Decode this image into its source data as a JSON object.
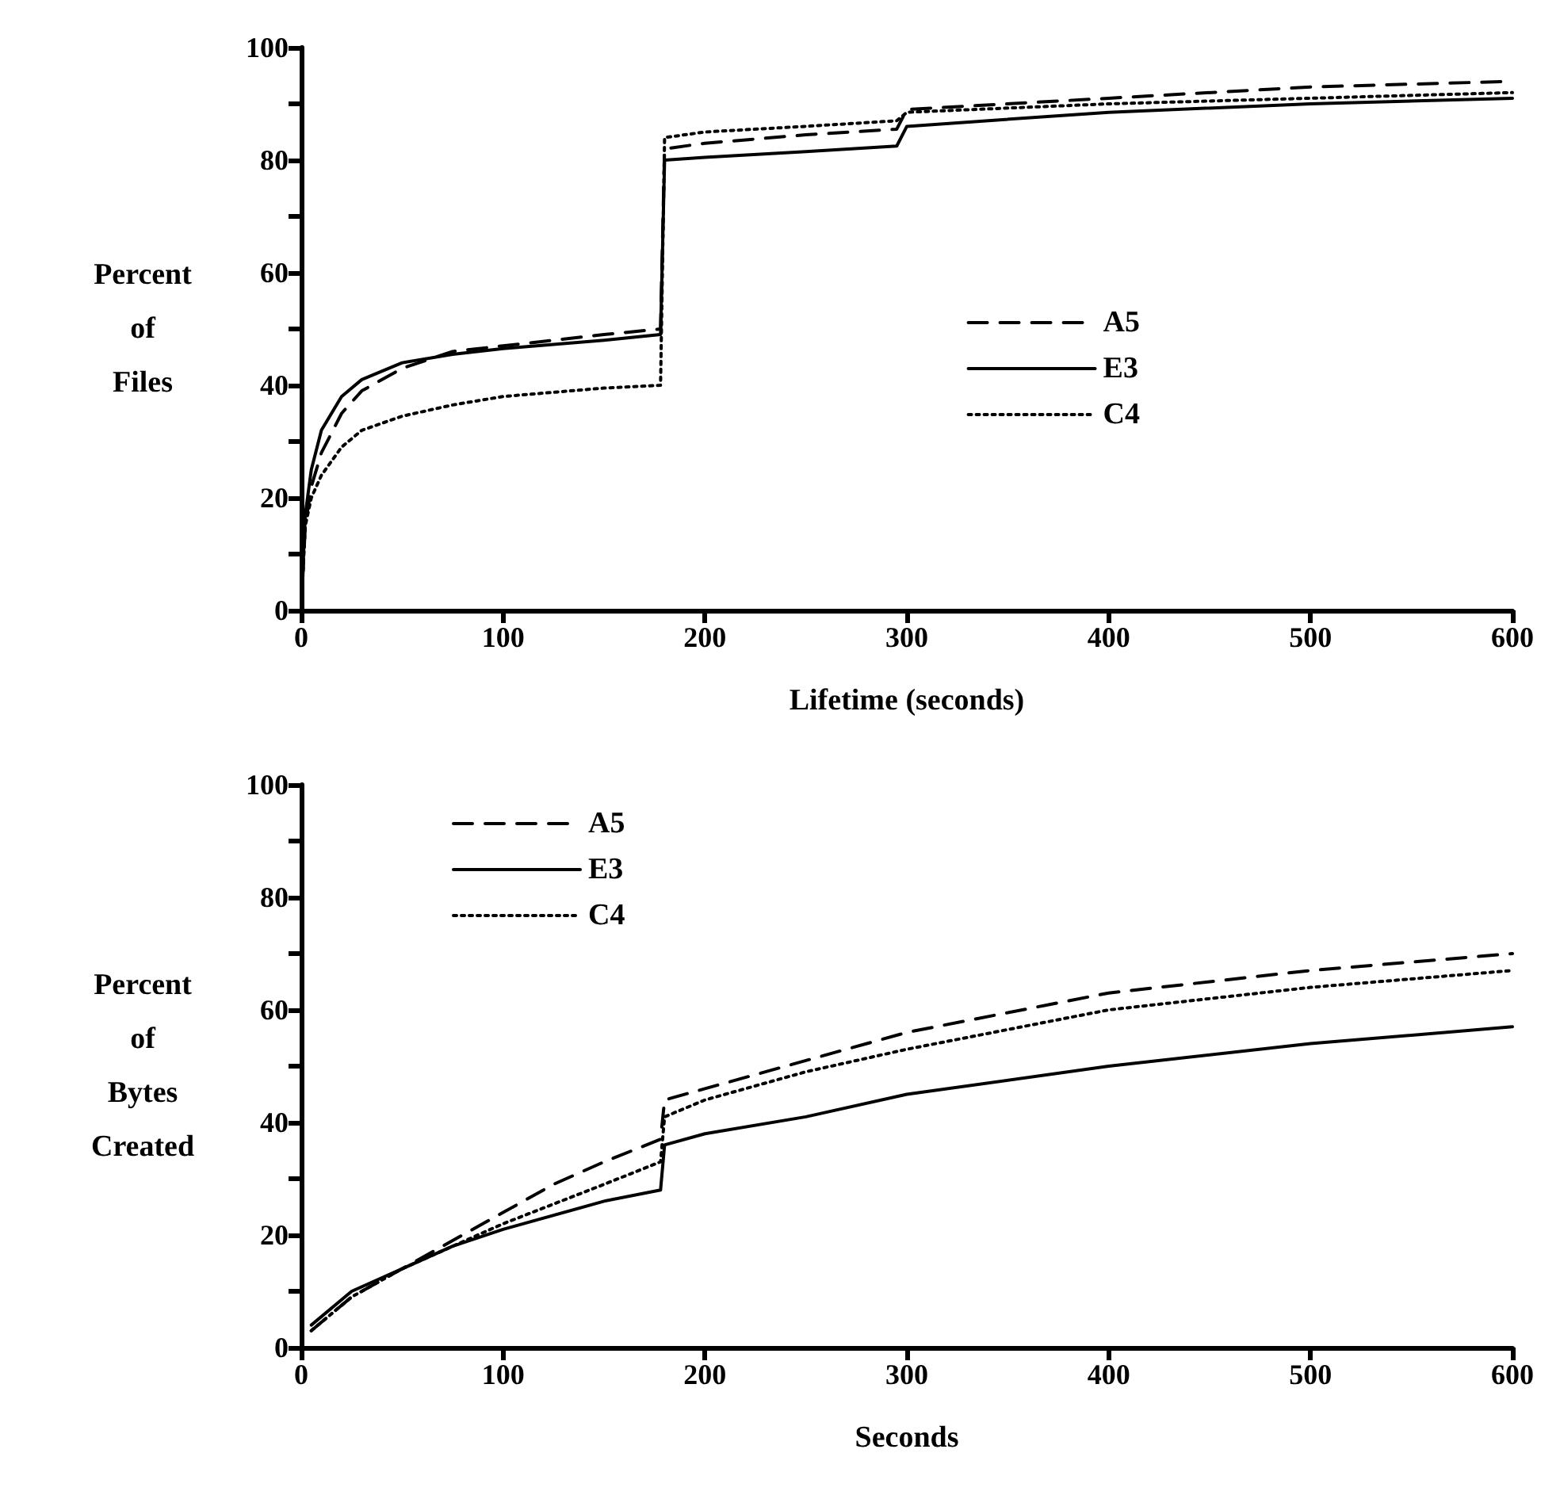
{
  "chart_data": [
    {
      "type": "line",
      "xlabel": "Lifetime (seconds)",
      "ylabel": "Percent\nof\nFiles",
      "xlim": [
        0,
        600
      ],
      "xticks": [
        0,
        100,
        200,
        300,
        400,
        500,
        600
      ],
      "ylim": [
        0,
        100
      ],
      "yticks": [
        0,
        {
          "value": 10,
          "label": null
        },
        20,
        {
          "value": 30,
          "label": null
        },
        40,
        {
          "value": 50,
          "label": null
        },
        60,
        {
          "value": 70,
          "label": null
        },
        80,
        {
          "value": 90,
          "label": null
        },
        100
      ],
      "grid": false,
      "legend": "right",
      "marker": "none",
      "series": [
        {
          "name": "A5",
          "color": "#000000",
          "line_style": "dashed",
          "x": [
            0,
            2,
            5,
            10,
            20,
            30,
            50,
            75,
            100,
            150,
            178,
            180,
            200,
            250,
            295,
            300,
            400,
            500,
            600
          ],
          "values": [
            0,
            15,
            22,
            28,
            35,
            39,
            43,
            46,
            47,
            49,
            50,
            82,
            83,
            84.5,
            85.5,
            89,
            91,
            93,
            94
          ]
        },
        {
          "name": "E3",
          "color": "#000000",
          "line_style": "solid",
          "x": [
            0,
            2,
            5,
            10,
            20,
            30,
            50,
            75,
            100,
            150,
            178,
            180,
            200,
            250,
            295,
            300,
            400,
            500,
            600
          ],
          "values": [
            0,
            17,
            25,
            32,
            38,
            41,
            44,
            45.5,
            46.5,
            48,
            49,
            80,
            80.5,
            81.5,
            82.5,
            86,
            88.5,
            90,
            91
          ]
        },
        {
          "name": "C4",
          "color": "#000000",
          "line_style": "dotted",
          "x": [
            0,
            2,
            5,
            10,
            20,
            30,
            50,
            75,
            100,
            150,
            178,
            180,
            200,
            250,
            295,
            300,
            400,
            500,
            600
          ],
          "values": [
            0,
            15,
            20,
            24,
            29,
            32,
            34.5,
            36.5,
            38,
            39.5,
            40,
            84,
            85,
            86,
            87,
            88.5,
            90,
            91,
            92
          ]
        }
      ]
    },
    {
      "type": "line",
      "xlabel": "Seconds",
      "ylabel": "Percent\nof\nBytes\nCreated",
      "xlim": [
        0,
        600
      ],
      "xticks": [
        0,
        100,
        200,
        300,
        400,
        500,
        600
      ],
      "ylim": [
        0,
        100
      ],
      "yticks": [
        0,
        {
          "value": 10,
          "label": null
        },
        20,
        {
          "value": 30,
          "label": null
        },
        40,
        {
          "value": 50,
          "label": null
        },
        60,
        {
          "value": 70,
          "label": null
        },
        80,
        {
          "value": 90,
          "label": null
        },
        100
      ],
      "grid": false,
      "legend": "top left",
      "marker": "none",
      "series": [
        {
          "name": "A5",
          "color": "#000000",
          "line_style": "dashed",
          "x": [
            5,
            25,
            50,
            75,
            100,
            125,
            150,
            178,
            180,
            200,
            250,
            300,
            400,
            500,
            600
          ],
          "values": [
            3,
            9,
            14,
            19,
            24,
            29,
            33,
            37,
            44,
            46,
            51,
            56,
            63,
            67,
            70
          ]
        },
        {
          "name": "E3",
          "color": "#000000",
          "line_style": "solid",
          "x": [
            5,
            25,
            50,
            75,
            100,
            150,
            178,
            180,
            200,
            250,
            300,
            400,
            500,
            600
          ],
          "values": [
            4,
            10,
            14,
            18,
            21,
            26,
            28,
            36,
            38,
            41,
            45,
            50,
            54,
            57
          ]
        },
        {
          "name": "C4",
          "color": "#000000",
          "line_style": "dotted",
          "x": [
            5,
            25,
            50,
            75,
            100,
            150,
            178,
            180,
            200,
            250,
            300,
            400,
            500,
            600
          ],
          "values": [
            3,
            9,
            14,
            18,
            22,
            29,
            33,
            41,
            44,
            49,
            53,
            60,
            64,
            67
          ]
        }
      ]
    }
  ]
}
